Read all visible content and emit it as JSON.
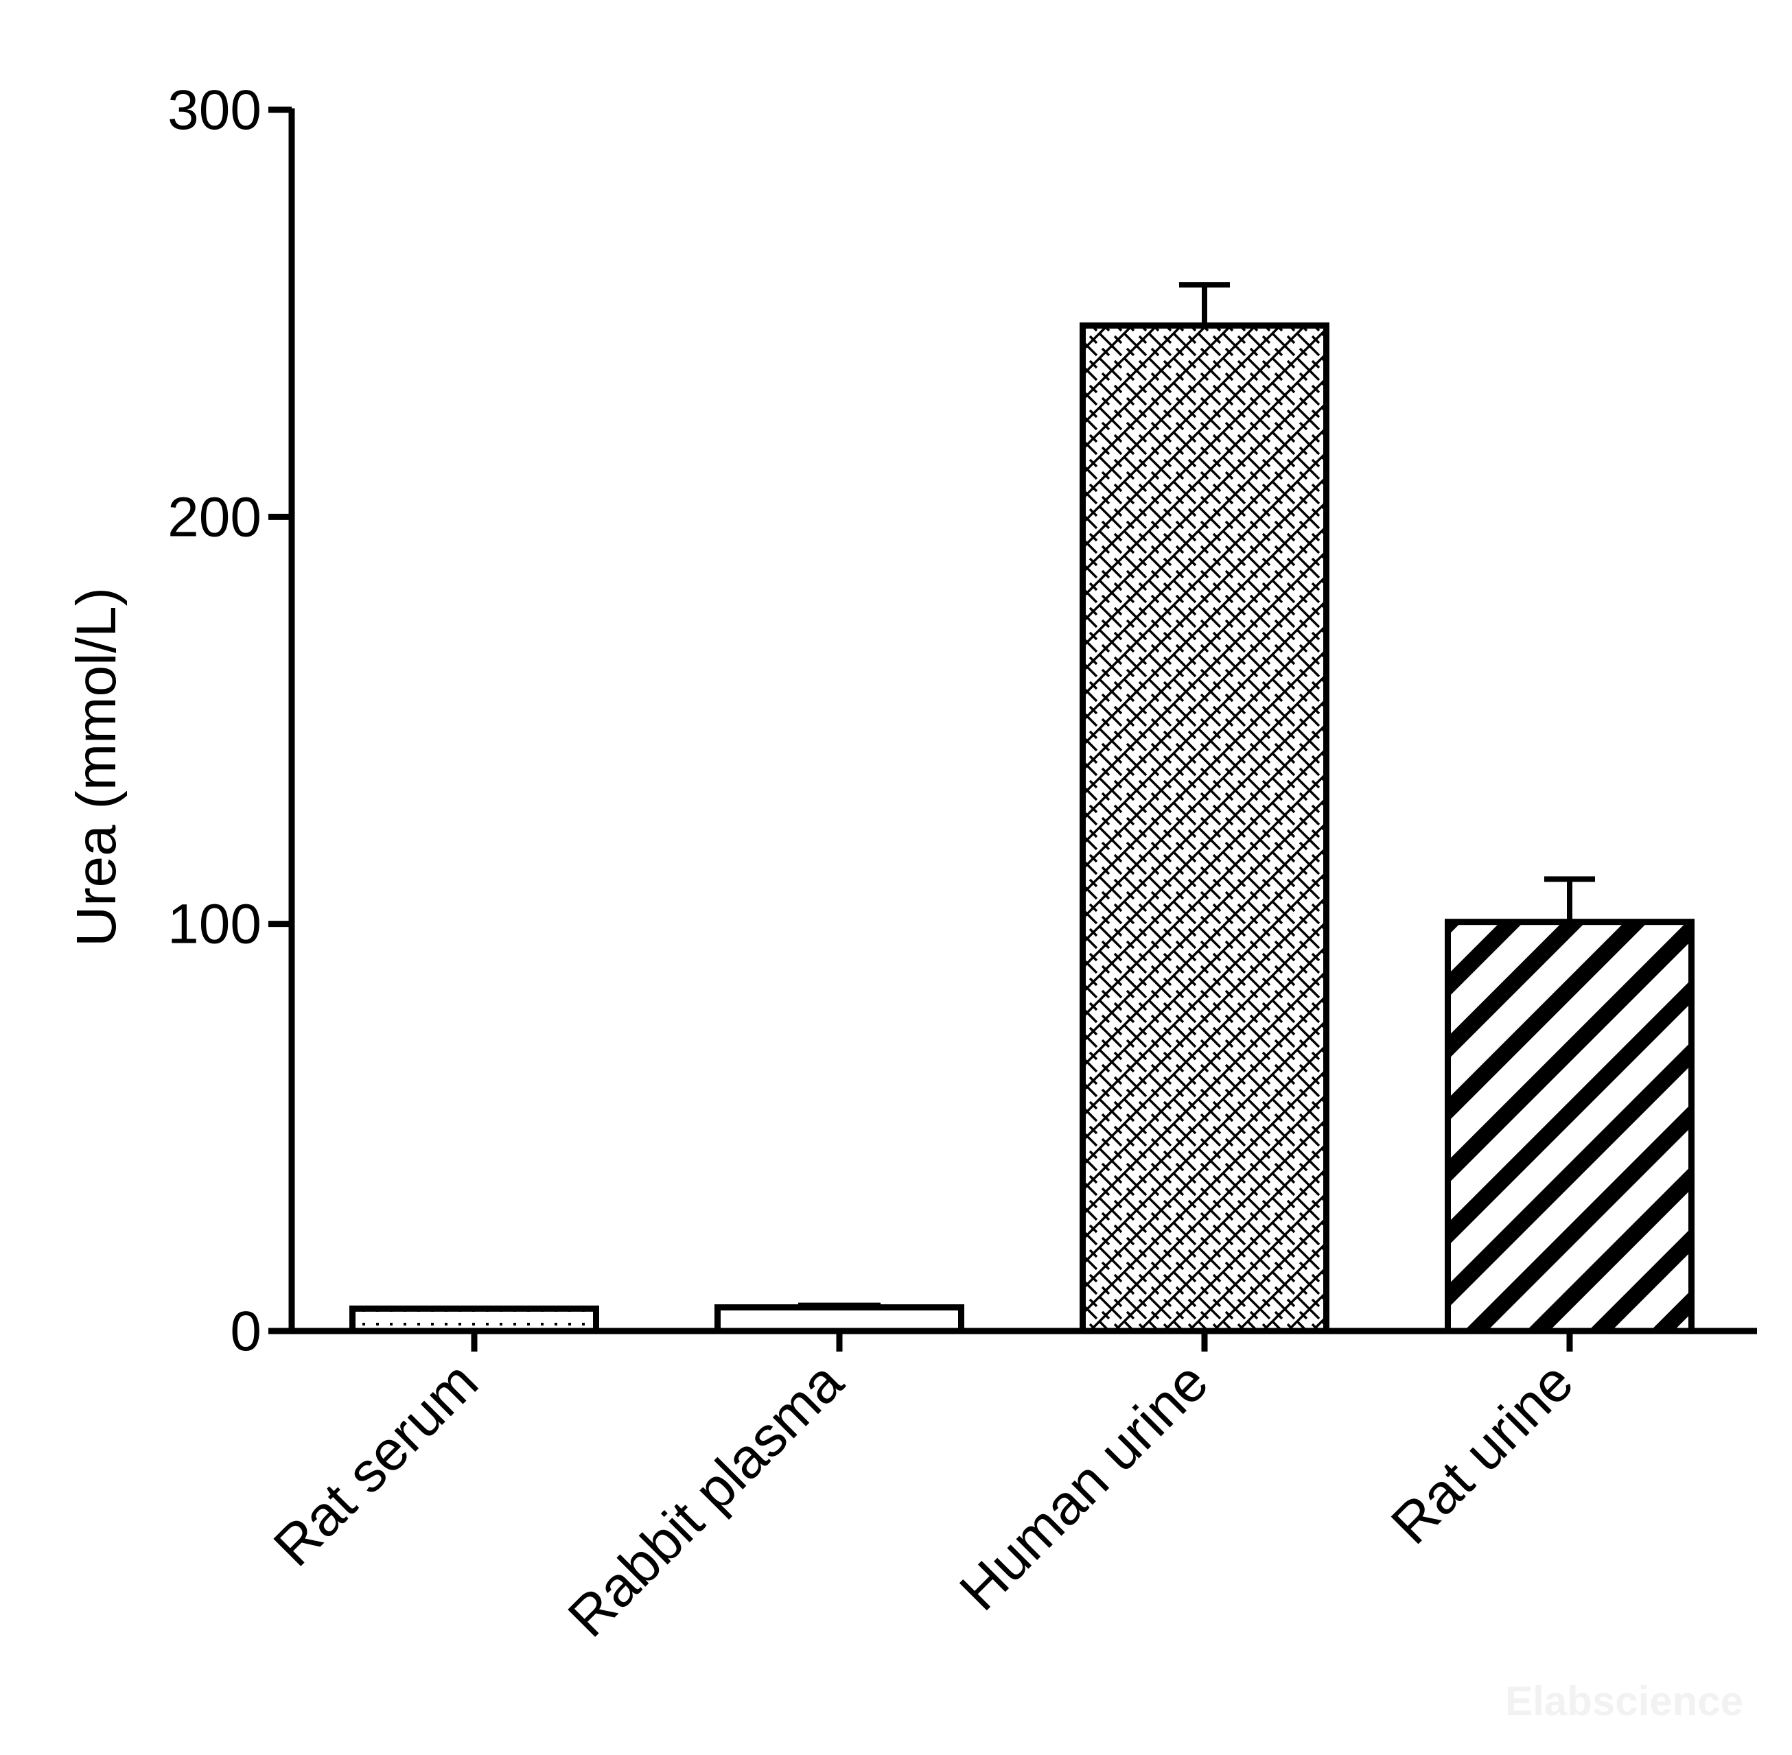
{
  "chart_data": {
    "type": "bar",
    "categories": [
      "Rat serum",
      "Rabbit plasma",
      "Human urine",
      "Rat urine"
    ],
    "values": [
      5.5,
      5.8,
      247,
      100.5
    ],
    "errors": [
      0,
      0.5,
      10,
      10.5
    ],
    "patterns": [
      "dotted",
      "blank",
      "crosshatch",
      "diagonal-stripes"
    ],
    "title": "",
    "xlabel": "",
    "ylabel": "Urea (mmol/L)",
    "ylim": [
      0,
      300
    ],
    "yticks": [
      0,
      100,
      200,
      300
    ],
    "ytick_labels": [
      "0",
      "100",
      "200",
      "300"
    ],
    "grid": false,
    "legend": "none",
    "colors": {
      "bar_stroke": "#000000",
      "bar_fill": "#ffffff",
      "axis": "#000000"
    }
  },
  "watermark": "Elabscience"
}
